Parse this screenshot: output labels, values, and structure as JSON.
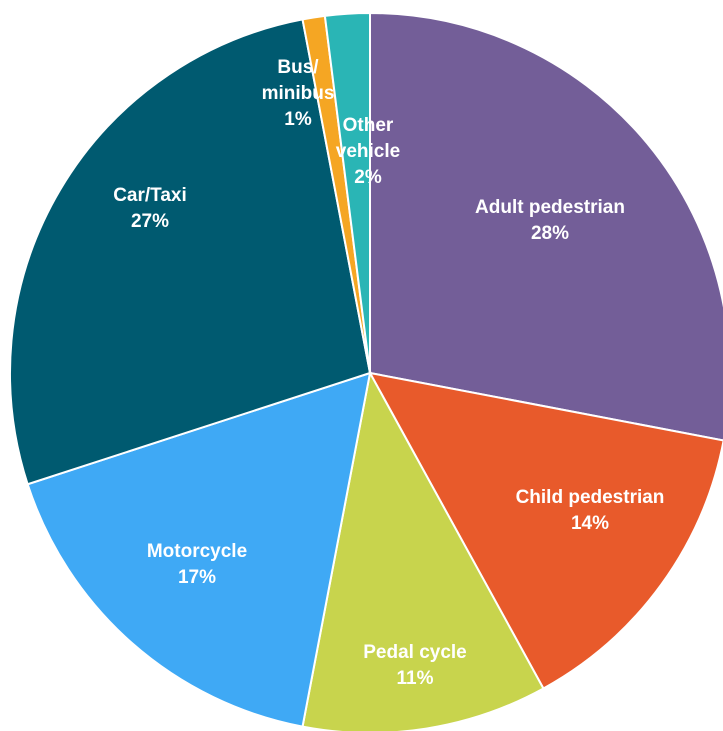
{
  "chart_data": {
    "type": "pie",
    "categories": [
      "Adult pedestrian",
      "Child pedestrian",
      "Pedal cycle",
      "Motorcycle",
      "Car/Taxi",
      "Bus/minibus",
      "Other vehicle"
    ],
    "values": [
      28,
      14,
      11,
      17,
      27,
      1,
      2
    ],
    "value_labels": [
      "28%",
      "14%",
      "11%",
      "17%",
      "27%",
      "1%",
      "2%"
    ],
    "colors": [
      "#735e98",
      "#e85a2b",
      "#c8d44d",
      "#3fa9f5",
      "#005a70",
      "#f5a623",
      "#2ab5b5"
    ]
  }
}
